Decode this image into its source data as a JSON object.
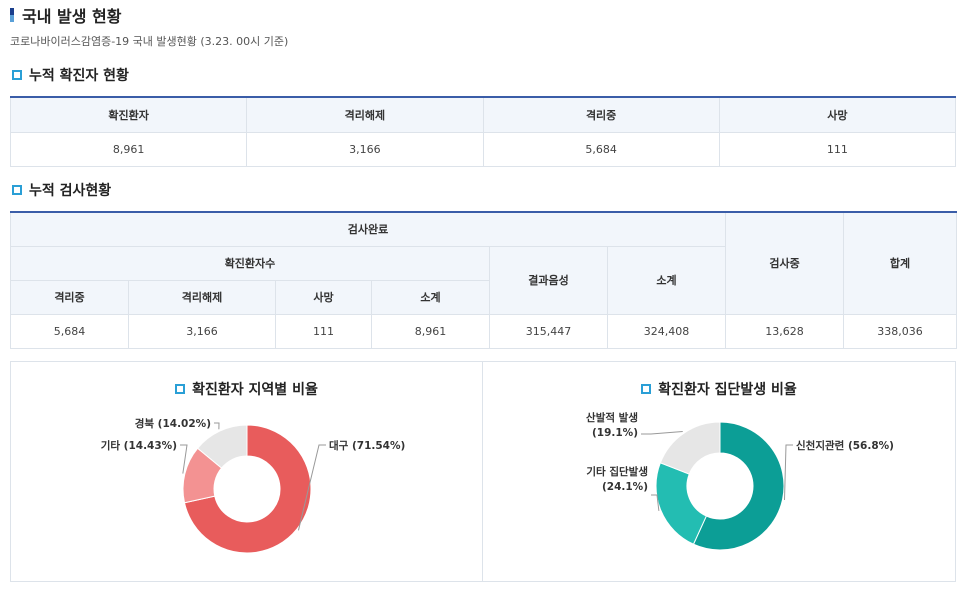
{
  "page": {
    "title": "국내 발생 현황",
    "subtitle": "코로나바이러스감염증-19 국내 발생현황 (3.23. 00시 기준)"
  },
  "cumulative_confirmed": {
    "title": "누적 확진자 현황",
    "headers": [
      "확진환자",
      "격리해제",
      "격리중",
      "사망"
    ],
    "values": [
      "8,961",
      "3,166",
      "5,684",
      "111"
    ]
  },
  "cumulative_tests": {
    "title": "누적 검사현황",
    "header_completed": "검사완료",
    "header_confirmed_count": "확진환자수",
    "header_negative": "결과음성",
    "header_subtotal_completed": "소계",
    "header_testing": "검사중",
    "header_total": "합계",
    "sub_headers": [
      "격리중",
      "격리해제",
      "사망",
      "소계"
    ],
    "values": [
      "5,684",
      "3,166",
      "111",
      "8,961",
      "315,447",
      "324,408",
      "13,628",
      "338,036"
    ]
  },
  "chart_data": [
    {
      "type": "pie",
      "title": "확진환자 지역별 비율",
      "labels": [
        "대구 (71.54%)",
        "기타 (14.43%)",
        "경북 (14.02%)"
      ],
      "values": [
        71.54,
        14.43,
        14.02
      ],
      "colors": [
        "#e85c5c",
        "#f39292",
        "#e6e6e6"
      ]
    },
    {
      "type": "pie",
      "title": "확진환자 집단발생 비율",
      "labels": [
        "신천지관련 (56.8%)",
        "기타 집단발생\n(24.1%)",
        "산발적 발생\n(19.1%)"
      ],
      "values": [
        56.8,
        24.1,
        19.1
      ],
      "colors": [
        "#0c9e96",
        "#23bdb2",
        "#e6e6e6"
      ]
    }
  ]
}
